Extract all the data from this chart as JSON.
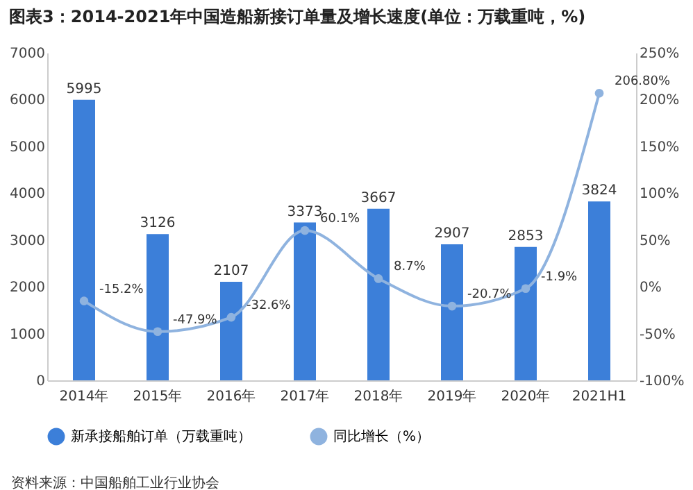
{
  "chart_data": {
    "type": "bar",
    "title": "图表3：2014-2021年中国造船新接订单量及增长速度(单位：万载重吨，%)",
    "categories": [
      "2014年",
      "2015年",
      "2016年",
      "2017年",
      "2018年",
      "2019年",
      "2020年",
      "2021H1"
    ],
    "series": [
      {
        "name": "新承接船舶订单（万载重吨）",
        "color": "#3c7fd9",
        "values": [
          5995,
          3126,
          2107,
          3373,
          3667,
          2907,
          2853,
          3824
        ],
        "value_labels": [
          "5995",
          "3126",
          "2107",
          "3373",
          "3667",
          "2907",
          "2853",
          "3824"
        ]
      },
      {
        "name": "同比增长（%）",
        "type": "line",
        "axis": "y2",
        "color": "#8fb3df",
        "marker": "circle",
        "line_style": "solid",
        "values": [
          -15.2,
          -47.9,
          -32.6,
          60.1,
          8.7,
          -20.7,
          -1.9,
          206.8
        ],
        "value_labels": [
          "-15.2%",
          "-47.9%",
          "-32.6%",
          "60.1%",
          "8.7%",
          "-20.7%",
          "-1.9%",
          "206.80%"
        ]
      }
    ],
    "ylim": [
      0,
      7000
    ],
    "yticks": [
      0,
      1000,
      2000,
      3000,
      4000,
      5000,
      6000,
      7000
    ],
    "y2lim": [
      -100,
      250
    ],
    "y2ticks": [
      {
        "value": -100,
        "label": "-100%"
      },
      {
        "value": -50,
        "label": "-50%"
      },
      {
        "value": 0,
        "label": "0%"
      },
      {
        "value": 50,
        "label": "50%"
      },
      {
        "value": 100,
        "label": "100%"
      },
      {
        "value": 150,
        "label": "150%"
      },
      {
        "value": 200,
        "label": "200%"
      },
      {
        "value": 250,
        "label": "250%"
      }
    ],
    "legend": "bottom",
    "grid": false,
    "annotations": [
      "资料来源：中国船舶工业行业协会"
    ]
  }
}
